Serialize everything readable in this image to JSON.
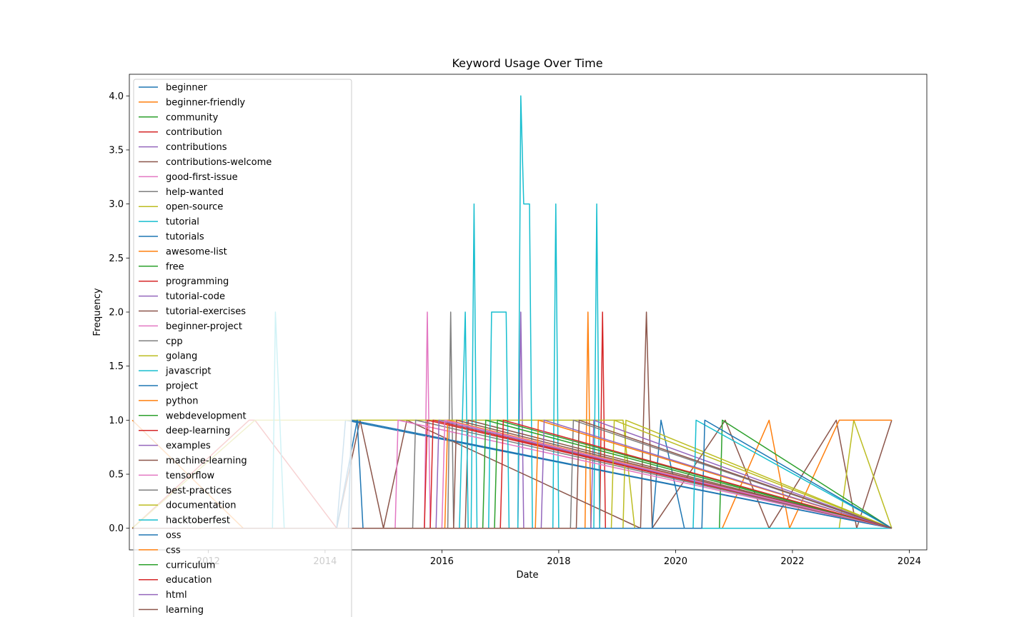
{
  "chart_data": {
    "type": "line",
    "title": "Keyword Usage Over Time",
    "xlabel": "Date",
    "ylabel": "Frequency",
    "xlim": [
      2010.65,
      2024.3
    ],
    "ylim": [
      -0.2,
      4.2
    ],
    "xticks": [
      2012,
      2014,
      2016,
      2018,
      2020,
      2022,
      2024
    ],
    "xtick_labels": [
      "2012",
      "2014",
      "2016",
      "2018",
      "2020",
      "2022",
      "2024"
    ],
    "yticks": [
      0.0,
      0.5,
      1.0,
      1.5,
      2.0,
      2.5,
      3.0,
      3.5,
      4.0
    ],
    "ytick_labels": [
      "0.0",
      "0.5",
      "1.0",
      "1.5",
      "2.0",
      "2.5",
      "3.0",
      "3.5",
      "4.0"
    ],
    "legend_position": "upper-left",
    "palette": [
      "#1f77b4",
      "#ff7f0e",
      "#2ca02c",
      "#d62728",
      "#9467bd",
      "#8c564b",
      "#e377c2",
      "#7f7f7f",
      "#bcbd22",
      "#17becf"
    ],
    "series": [
      {
        "name": "beginner",
        "x": [
          2010.7,
          2014.2,
          2014.35,
          2023.7
        ],
        "values": [
          0,
          0,
          1,
          0
        ]
      },
      {
        "name": "beginner-friendly",
        "x": [
          2010.7,
          2012.6,
          2012.8,
          2018.45,
          2018.5,
          2018.55,
          2023.7
        ],
        "values": [
          1,
          0,
          0,
          0,
          2,
          0,
          0
        ]
      },
      {
        "name": "community",
        "x": [
          2010.7,
          2014.2,
          2023.7
        ],
        "values": [
          0,
          0,
          0
        ]
      },
      {
        "name": "contribution",
        "x": [
          2010.7,
          2012.7,
          2012.8,
          2014.2,
          2018.7,
          2018.75,
          2018.8,
          2023.7
        ],
        "values": [
          0,
          1,
          1,
          0,
          0,
          2,
          0,
          0
        ]
      },
      {
        "name": "contributions",
        "x": [
          2010.7,
          2017.3,
          2017.35,
          2017.4,
          2023.7
        ],
        "values": [
          0,
          0,
          2,
          0,
          0
        ]
      },
      {
        "name": "contributions-welcome",
        "x": [
          2010.7,
          2014.2,
          2014.6,
          2015.0,
          2015.4,
          2019.4,
          2019.5,
          2019.6,
          2020.85,
          2021.6,
          2022.75,
          2023.1,
          2023.7
        ],
        "values": [
          0,
          0,
          1,
          0,
          1,
          0,
          2,
          0,
          1,
          0,
          1,
          0,
          1
        ]
      },
      {
        "name": "good-first-issue",
        "x": [
          2010.7,
          2015.7,
          2015.75,
          2015.8,
          2023.7
        ],
        "values": [
          0,
          0,
          2,
          0,
          0
        ]
      },
      {
        "name": "help-wanted",
        "x": [
          2010.7,
          2016.1,
          2016.15,
          2016.2,
          2023.7
        ],
        "values": [
          0,
          0,
          2,
          0,
          0
        ]
      },
      {
        "name": "open-source",
        "x": [
          2010.7,
          2012.8,
          2013.1,
          2019.1,
          2019.3,
          2022.8,
          2023.05,
          2023.7
        ],
        "values": [
          0,
          1,
          1,
          1,
          0,
          0,
          1,
          0
        ]
      },
      {
        "name": "tutorial",
        "x": [
          2010.7,
          2013.1,
          2013.15,
          2013.3,
          2016.5,
          2016.55,
          2016.6,
          2017.3,
          2017.35,
          2017.4,
          2017.5,
          2017.55,
          2017.9,
          2017.95,
          2018.0,
          2018.6,
          2018.65,
          2018.7,
          2023.7
        ],
        "values": [
          0,
          0,
          2,
          0,
          0,
          3,
          0,
          0,
          4,
          3,
          3,
          0,
          0,
          3,
          0,
          0,
          3,
          0,
          0
        ]
      },
      {
        "name": "tutorials",
        "x": [
          2010.7,
          2014.2,
          2014.55,
          2014.65,
          2019.6,
          2019.75,
          2020.15,
          2023.7
        ],
        "values": [
          0,
          0,
          1,
          0,
          0,
          1,
          0,
          0
        ]
      },
      {
        "name": "awesome-list",
        "x": [
          2010.7,
          2020.8,
          2021.6,
          2021.95,
          2022.8,
          2023.7
        ],
        "values": [
          0,
          0,
          1,
          0,
          1,
          1
        ]
      },
      {
        "name": "free",
        "x": [
          2010.7,
          2020.75,
          2020.8,
          2023.7
        ],
        "values": [
          0,
          0,
          1,
          0
        ]
      },
      {
        "name": "programming",
        "x": [
          2010.7,
          2015.7,
          2015.75,
          2023.7
        ],
        "values": [
          0,
          0,
          1,
          0
        ]
      },
      {
        "name": "tutorial-code",
        "x": [
          2010.7,
          2018.55,
          2018.6,
          2023.7
        ],
        "values": [
          0,
          0,
          1,
          0
        ]
      },
      {
        "name": "tutorial-exercises",
        "x": [
          2010.7,
          2016.4,
          2016.45,
          2023.7
        ],
        "values": [
          0,
          0,
          1,
          0
        ]
      },
      {
        "name": "beginner-project",
        "x": [
          2010.7,
          2015.2,
          2015.25,
          2023.7
        ],
        "values": [
          0,
          0,
          1,
          0
        ]
      },
      {
        "name": "cpp",
        "x": [
          2010.7,
          2015.5,
          2015.55,
          2023.7
        ],
        "values": [
          0,
          0,
          1,
          0
        ]
      },
      {
        "name": "golang",
        "x": [
          2010.7,
          2019.1,
          2019.15,
          2023.7
        ],
        "values": [
          0,
          0,
          1,
          0
        ]
      },
      {
        "name": "javascript",
        "x": [
          2010.7,
          2016.3,
          2016.4,
          2016.45,
          2016.8,
          2016.85,
          2017.1,
          2017.15,
          2023.7
        ],
        "values": [
          0,
          0,
          2,
          0,
          0,
          2,
          2,
          0,
          0
        ]
      },
      {
        "name": "project",
        "x": [
          2010.7,
          2014.4,
          2014.45,
          2023.7
        ],
        "values": [
          0,
          0,
          1,
          0
        ]
      },
      {
        "name": "python",
        "x": [
          2010.7,
          2016.05,
          2016.1,
          2023.7
        ],
        "values": [
          0,
          0,
          1,
          0
        ]
      },
      {
        "name": "webdevelopment",
        "x": [
          2010.7,
          2016.9,
          2016.95,
          2023.7
        ],
        "values": [
          0,
          0,
          1,
          0
        ]
      },
      {
        "name": "deep-learning",
        "x": [
          2010.7,
          2015.8,
          2015.85,
          2023.7
        ],
        "values": [
          0,
          0,
          1,
          0
        ]
      },
      {
        "name": "examples",
        "x": [
          2010.7,
          2015.9,
          2015.95,
          2023.7
        ],
        "values": [
          0,
          0,
          1,
          0
        ]
      },
      {
        "name": "machine-learning",
        "x": [
          2010.7,
          2016.2,
          2016.25,
          2023.7
        ],
        "values": [
          0,
          0,
          1,
          0
        ]
      },
      {
        "name": "tensorflow",
        "x": [
          2010.7,
          2016.0,
          2016.05,
          2023.7
        ],
        "values": [
          0,
          0,
          1,
          0
        ]
      },
      {
        "name": "best-practices",
        "x": [
          2010.7,
          2018.2,
          2018.25,
          2023.7
        ],
        "values": [
          0,
          0,
          1,
          0
        ]
      },
      {
        "name": "documentation",
        "x": [
          2010.7,
          2018.9,
          2018.95,
          2023.7
        ],
        "values": [
          0,
          0,
          1,
          0
        ]
      },
      {
        "name": "hacktoberfest",
        "x": [
          2010.7,
          2020.3,
          2020.35,
          2023.7
        ],
        "values": [
          0,
          0,
          1,
          0
        ]
      },
      {
        "name": "oss",
        "x": [
          2010.7,
          2020.45,
          2020.5,
          2023.7
        ],
        "values": [
          0,
          0,
          1,
          0
        ]
      },
      {
        "name": "css",
        "x": [
          2010.7,
          2017.6,
          2017.65,
          2023.7
        ],
        "values": [
          0,
          0,
          1,
          0
        ]
      },
      {
        "name": "curriculum",
        "x": [
          2010.7,
          2016.7,
          2016.75,
          2023.7
        ],
        "values": [
          0,
          0,
          1,
          0
        ]
      },
      {
        "name": "education",
        "x": [
          2010.7,
          2017.0,
          2017.05,
          2023.7
        ],
        "values": [
          0,
          0,
          1,
          0
        ]
      },
      {
        "name": "html",
        "x": [
          2010.7,
          2017.7,
          2017.75,
          2023.7
        ],
        "values": [
          0,
          0,
          1,
          0
        ]
      },
      {
        "name": "learning",
        "x": [
          2010.7,
          2018.3,
          2018.35,
          2023.7
        ],
        "values": [
          0,
          0,
          1,
          0
        ]
      }
    ]
  }
}
